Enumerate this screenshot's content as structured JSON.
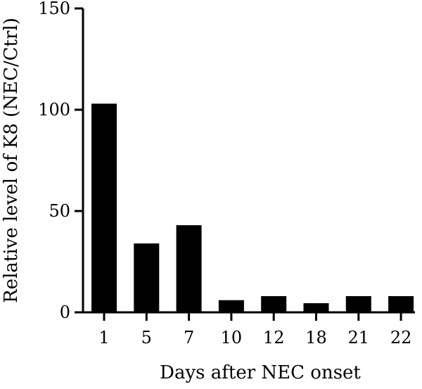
{
  "chart_data": {
    "type": "bar",
    "title": "",
    "xlabel": "Days after NEC onset",
    "ylabel": "Relative level of K8 (NEC/Ctrl)",
    "categories": [
      "1",
      "5",
      "7",
      "10",
      "12",
      "18",
      "21",
      "22"
    ],
    "values": [
      103,
      34,
      43,
      6,
      8,
      4.5,
      8,
      8
    ],
    "ylim": [
      0,
      150
    ],
    "yticks": [
      "0",
      "50",
      "100",
      "150"
    ],
    "grid": false,
    "legend": "none",
    "bar_color": "#000000"
  }
}
